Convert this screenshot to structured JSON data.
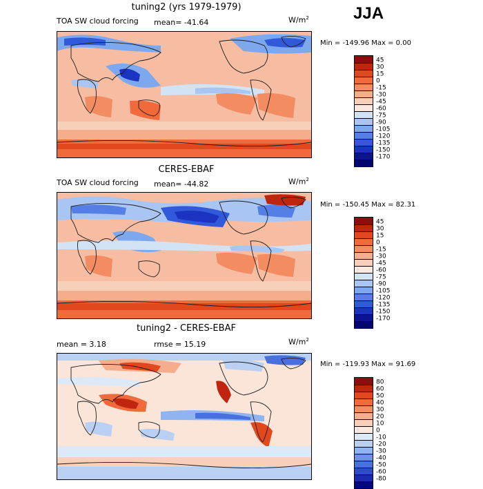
{
  "season": "JJA",
  "panels": [
    {
      "title": "tuning2 (yrs 1979-1979)",
      "left_label": "TOA SW cloud forcing",
      "mean_text": "mean= -41.64",
      "units": "W/m",
      "units_sup": "2",
      "minmax": "Min = -149.96 Max =    0.00",
      "colorbar_labels": [
        "45",
        "30",
        "15",
        "0",
        "-15",
        "-30",
        "-45",
        "-60",
        "-75",
        "-90",
        "-105",
        "-120",
        "-135",
        "-150",
        "-170"
      ],
      "colorbar_colors": [
        "#8b0f0f",
        "#c0260f",
        "#e2481e",
        "#f06a3c",
        "#f48c62",
        "#f6ad8c",
        "#f8cfb8",
        "#fbe9df",
        "#d3e3f6",
        "#a9c6f2",
        "#7ea8ee",
        "#567fe6",
        "#3259d9",
        "#1a33c0",
        "#0a1490",
        "#03066b"
      ]
    },
    {
      "title": "CERES-EBAF",
      "left_label": "TOA SW cloud forcing",
      "mean_text": "mean= -44.82",
      "units": "W/m",
      "units_sup": "2",
      "minmax": "Min = -150.45 Max =  82.31",
      "colorbar_labels": [
        "45",
        "30",
        "15",
        "0",
        "-15",
        "-30",
        "-45",
        "-60",
        "-75",
        "-90",
        "-105",
        "-120",
        "-135",
        "-150",
        "-170"
      ],
      "colorbar_colors": [
        "#8b0f0f",
        "#c0260f",
        "#e2481e",
        "#f06a3c",
        "#f48c62",
        "#f6ad8c",
        "#f8cfb8",
        "#fbe9df",
        "#d3e3f6",
        "#a9c6f2",
        "#7ea8ee",
        "#567fe6",
        "#3259d9",
        "#1a33c0",
        "#0a1490",
        "#03066b"
      ]
    },
    {
      "title": "tuning2 - CERES-EBAF",
      "mean_text": "mean =    3.18",
      "rmse_text": "rmse =   15.19",
      "units": "W/m",
      "units_sup": "2",
      "minmax": "Min = -119.93 Max =  91.69",
      "colorbar_labels": [
        "80",
        "60",
        "50",
        "40",
        "30",
        "20",
        "10",
        "0",
        "-10",
        "-20",
        "-30",
        "-40",
        "-50",
        "-60",
        "-80"
      ],
      "colorbar_colors": [
        "#8b0f0f",
        "#c0260f",
        "#e2481e",
        "#f06a3c",
        "#f48c62",
        "#f6ad8c",
        "#f8cfb8",
        "#fbe9df",
        "#dde9f7",
        "#b9d0f3",
        "#8fb4ef",
        "#6b93e8",
        "#4a6fde",
        "#2e4bd0",
        "#1a2bb0",
        "#06087a"
      ]
    }
  ]
}
